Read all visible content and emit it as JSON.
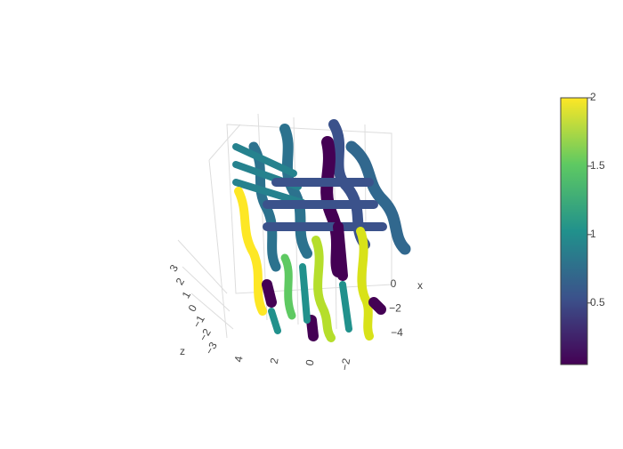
{
  "chart_data": {
    "type": "streamtube",
    "xaxis_title": "x",
    "zaxis_title": "z",
    "xticks": [
      0,
      {
        "value": -2,
        "label": "−2"
      },
      {
        "value": -4,
        "label": "−4"
      }
    ],
    "yticks": [
      4,
      2,
      0,
      {
        "value": -2,
        "label": "−2"
      }
    ],
    "zticks": [
      3,
      2,
      1,
      0,
      {
        "value": -1,
        "label": "−1"
      },
      {
        "value": -2,
        "label": "−2"
      },
      {
        "value": -3,
        "label": "−3"
      }
    ],
    "colorscale": "viridis",
    "cmin": 0.05,
    "cmax": 2,
    "colorbar_ticks": [
      0.5,
      1,
      1.5,
      2
    ]
  }
}
